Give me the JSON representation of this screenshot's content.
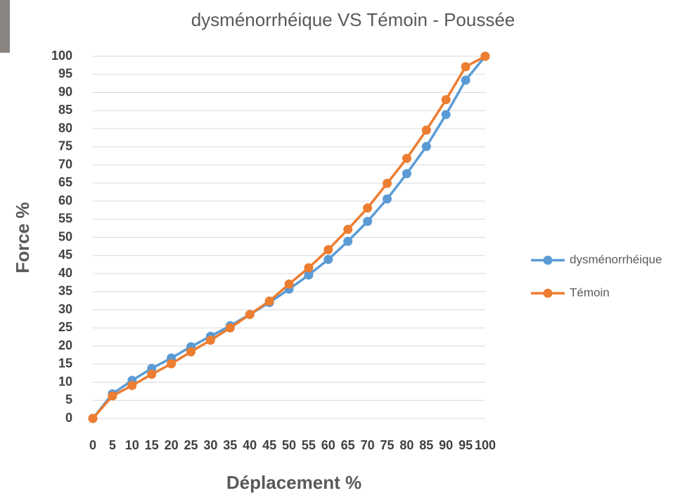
{
  "chart_data": {
    "type": "line",
    "title": "dysménorrhéique VS Témoin - Poussée",
    "x_label": "Déplacement %",
    "y_label": "Force %",
    "x": [
      0,
      5,
      10,
      15,
      20,
      25,
      30,
      35,
      40,
      45,
      50,
      55,
      60,
      65,
      70,
      75,
      80,
      85,
      90,
      95,
      100
    ],
    "xlim": [
      0,
      100
    ],
    "xticks": [
      0,
      5,
      10,
      15,
      20,
      25,
      30,
      35,
      40,
      45,
      50,
      55,
      60,
      65,
      70,
      75,
      80,
      85,
      90,
      95,
      100
    ],
    "ylim": [
      0,
      100
    ],
    "yticks": [
      0,
      5,
      10,
      15,
      20,
      25,
      30,
      35,
      40,
      45,
      50,
      55,
      60,
      65,
      70,
      75,
      80,
      85,
      90,
      95,
      100
    ],
    "grid": true,
    "legend": "right",
    "series": [
      {
        "name": "dysménorrhéique",
        "color": "#5b9bd5",
        "values": [
          0,
          6.8,
          10.5,
          13.8,
          16.7,
          19.8,
          22.7,
          25.6,
          28.7,
          32.0,
          35.7,
          39.6,
          43.9,
          48.9,
          54.4,
          60.6,
          67.6,
          75.1,
          83.9,
          93.4,
          100
        ]
      },
      {
        "name": "Témoin",
        "color": "#ed7d31",
        "values": [
          0,
          6.2,
          9.1,
          12.2,
          15.1,
          18.4,
          21.6,
          25.0,
          28.7,
          32.4,
          37.1,
          41.6,
          46.6,
          52.2,
          58.1,
          64.9,
          71.8,
          79.6,
          88.0,
          97.1,
          100
        ]
      }
    ]
  }
}
